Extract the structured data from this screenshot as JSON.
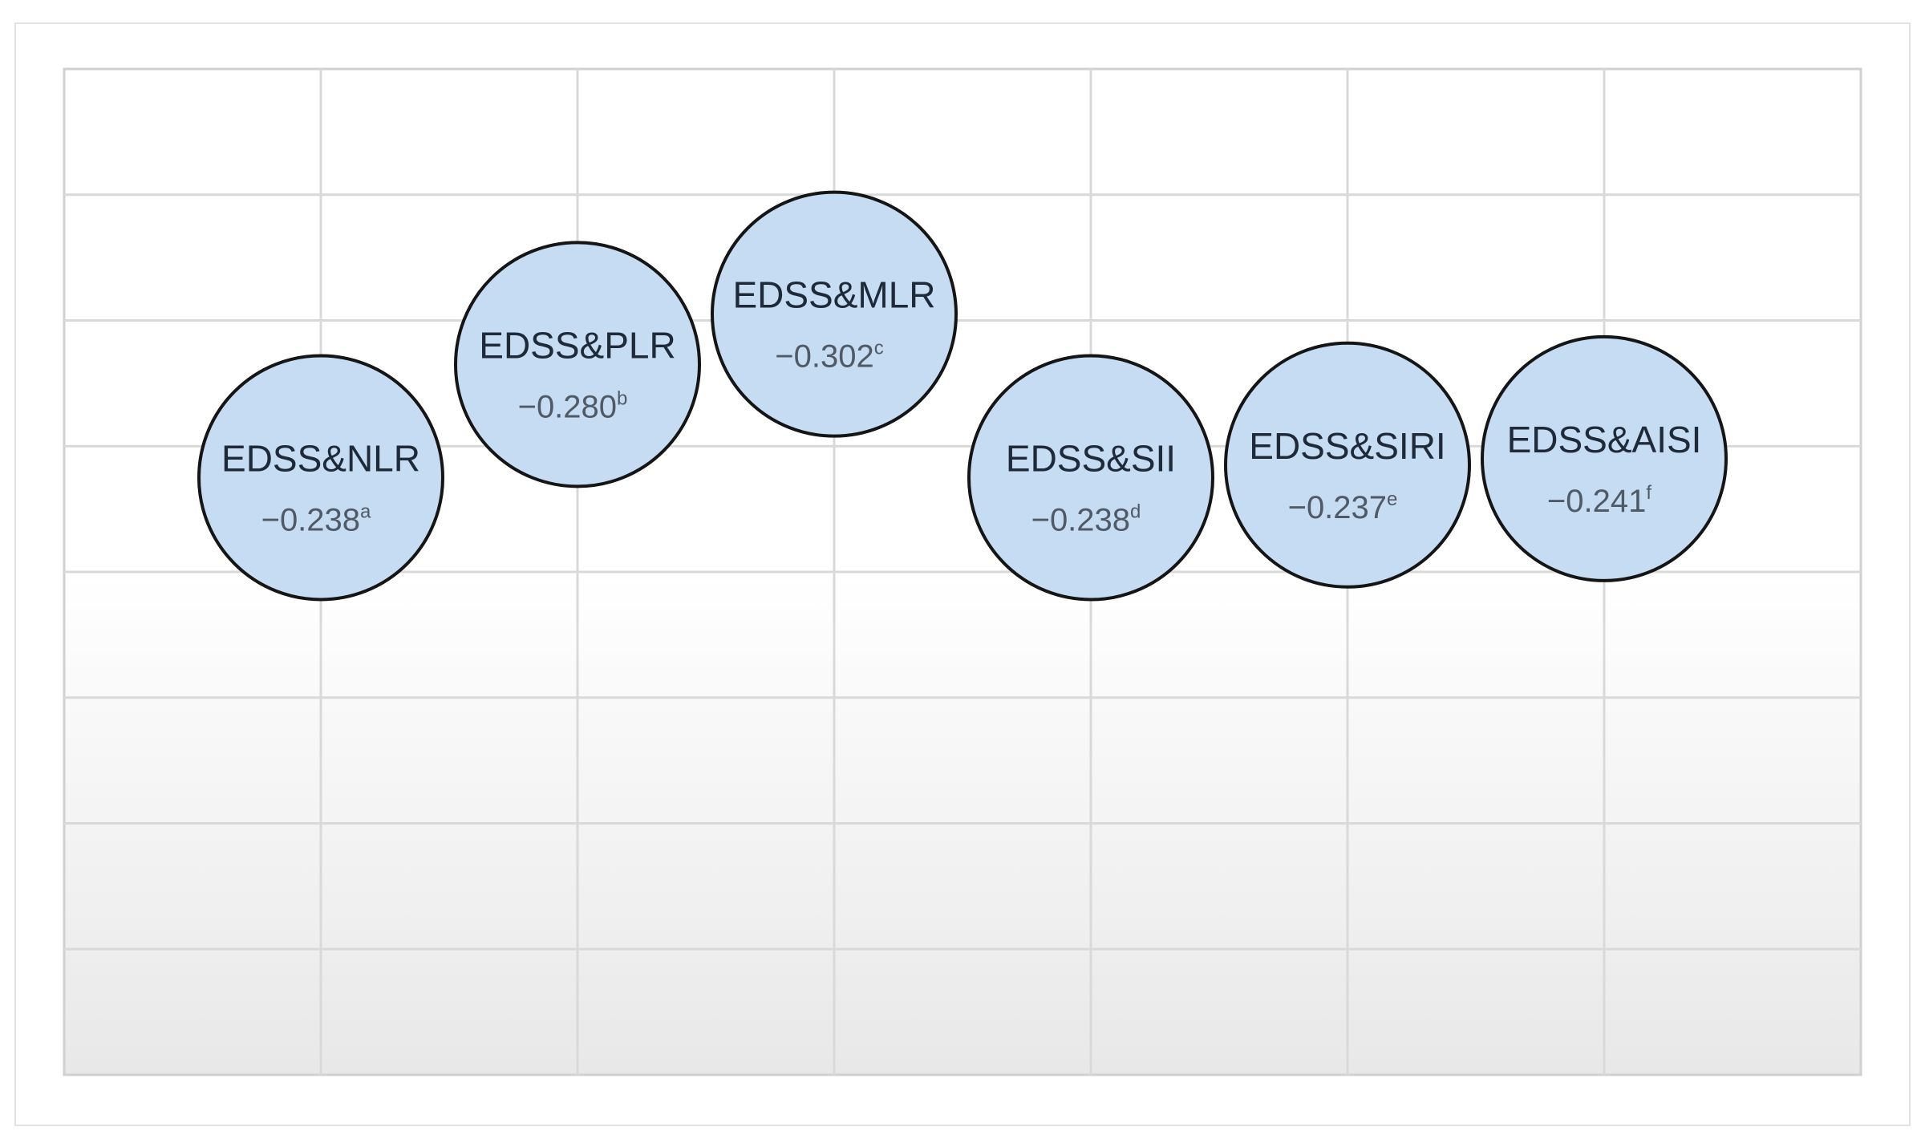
{
  "chart_data": {
    "type": "scatter",
    "title": "",
    "xlabel": "",
    "ylabel": "",
    "grid": true,
    "grid_columns": 7,
    "grid_rows": 8,
    "points": [
      {
        "label": "EDSS&NLR",
        "value": "−0.238",
        "sup": "a",
        "r": -0.238,
        "column": 1,
        "row": 3.25
      },
      {
        "label": "EDSS&PLR",
        "value": "−0.280",
        "sup": "b",
        "r": -0.28,
        "column": 2,
        "row": 2.35
      },
      {
        "label": "EDSS&MLR",
        "value": "−0.302",
        "sup": "c",
        "r": -0.302,
        "column": 3,
        "row": 1.95
      },
      {
        "label": "EDSS&SII",
        "value": "−0.238",
        "sup": "d",
        "r": -0.238,
        "column": 4,
        "row": 3.25
      },
      {
        "label": "EDSS&SIRI",
        "value": "−0.237",
        "sup": "e",
        "r": -0.237,
        "column": 5,
        "row": 3.15
      },
      {
        "label": "EDSS&AISI",
        "value": "−0.241",
        "sup": "f",
        "r": -0.241,
        "column": 6,
        "row": 3.1
      }
    ]
  },
  "colors": {
    "bubble_fill": "#c5dcf2",
    "bubble_stroke": "#151515",
    "grid_line": "#d9d9d9",
    "plot_gradient_bottom": "#e8e8e8"
  }
}
